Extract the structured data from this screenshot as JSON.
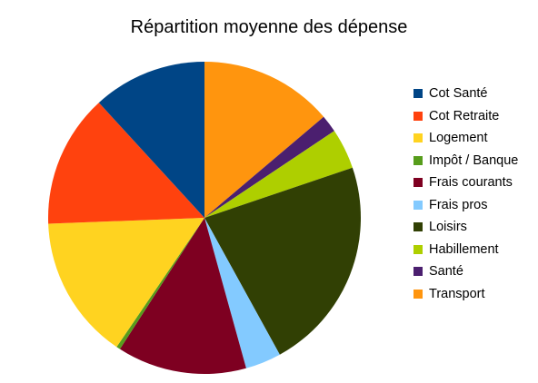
{
  "chart_data": {
    "type": "pie",
    "title": "Répartition moyenne des dépense",
    "slices": [
      {
        "label": "Transport",
        "value": 13.8,
        "color": "#ff950e"
      },
      {
        "label": "Santé",
        "value": 1.8,
        "color": "#4b1f6f"
      },
      {
        "label": "Habillement",
        "value": 4.2,
        "color": "#aecf00"
      },
      {
        "label": "Loisirs",
        "value": 22.2,
        "color": "#314004"
      },
      {
        "label": "Frais pros",
        "value": 3.7,
        "color": "#83caff"
      },
      {
        "label": "Frais courants",
        "value": 13.4,
        "color": "#7e0021"
      },
      {
        "label": "Impôt / Banque",
        "value": 0.4,
        "color": "#579d1c"
      },
      {
        "label": "Logement",
        "value": 14.9,
        "color": "#ffd320"
      },
      {
        "label": "Cot Retraite",
        "value": 13.8,
        "color": "#ff420e"
      },
      {
        "label": "Cot Santé",
        "value": 11.8,
        "color": "#004586"
      }
    ],
    "legend": {
      "position": "right",
      "items": [
        {
          "label": "Cot Santé",
          "color": "#004586"
        },
        {
          "label": "Cot Retraite",
          "color": "#ff420e"
        },
        {
          "label": "Logement",
          "color": "#ffd320"
        },
        {
          "label": "Impôt / Banque",
          "color": "#579d1c"
        },
        {
          "label": "Frais courants",
          "color": "#7e0021"
        },
        {
          "label": "Frais pros",
          "color": "#83caff"
        },
        {
          "label": "Loisirs",
          "color": "#314004"
        },
        {
          "label": "Habillement",
          "color": "#aecf00"
        },
        {
          "label": "Santé",
          "color": "#4b1f6f"
        },
        {
          "label": "Transport",
          "color": "#ff950e"
        }
      ]
    }
  }
}
